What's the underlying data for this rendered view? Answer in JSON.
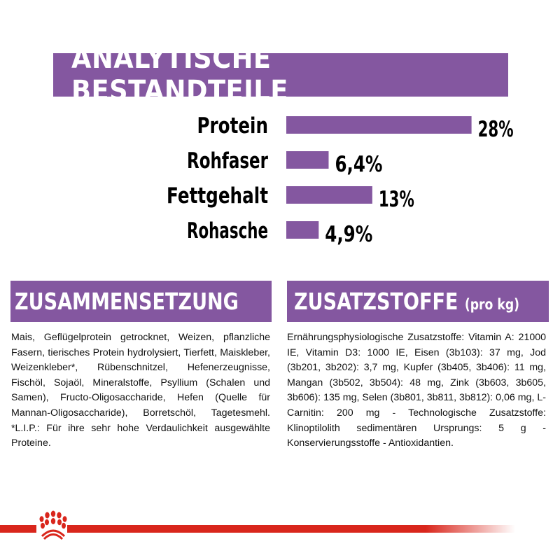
{
  "title": "ANALYTISCHE BESTANDTEILE",
  "chart_data": {
    "type": "bar",
    "orientation": "horizontal",
    "categories": [
      "Protein",
      "Rohfaser",
      "Fettgehalt",
      "Rohasche"
    ],
    "values": [
      28,
      6.4,
      13,
      4.9
    ],
    "value_labels": [
      "28%",
      "6,4%",
      "13%",
      "4,9%"
    ],
    "unit": "%",
    "bar_color": "#8457a0",
    "grid": false
  },
  "composition": {
    "heading": "ZUSAMMENSETZUNG",
    "text": "Mais, Geflügelprotein getrocknet, Weizen, pflanzliche Fasern, tierisches Protein hydrolysiert, Tierfett, Maiskleber, Weizenkleber*, Rübenschnitzel, Hefenerzeugnisse, Fischöl, Sojaöl, Mineralstoffe, Psyllium (Schalen und Samen), Fructo-Oligosaccharide, Hefen (Quelle für Mannan-Oligosaccharide), Borretschöl, Tagetesmehl. *L.I.P.: Für ihre sehr hohe Verdaulichkeit ausgewählte Proteine."
  },
  "additives": {
    "heading": "ZUSATZSTOFFE",
    "heading_suffix": "(pro kg)",
    "text": "Ernährungsphysiologische Zusatzstoffe: Vitamin A: 21000 IE, Vitamin D3: 1000 IE, Eisen (3b103): 37 mg, Jod (3b201, 3b202): 3,7 mg, Kupfer (3b405, 3b406): 11 mg, Mangan (3b502, 3b504): 48 mg, Zink (3b603, 3b605, 3b606): 135 mg, Selen (3b801, 3b811, 3b812): 0,06 mg, L-Carnitin: 200 mg - Technologische Zusatzstoffe: Klinoptilolith sedimentären Ursprungs: 5 g - Konservierungsstoffe - Antioxidantien."
  },
  "colors": {
    "accent": "#8457a0",
    "brand_red": "#d9261c"
  },
  "footer": {
    "logo_icon": "royal-canin-crown-icon"
  }
}
